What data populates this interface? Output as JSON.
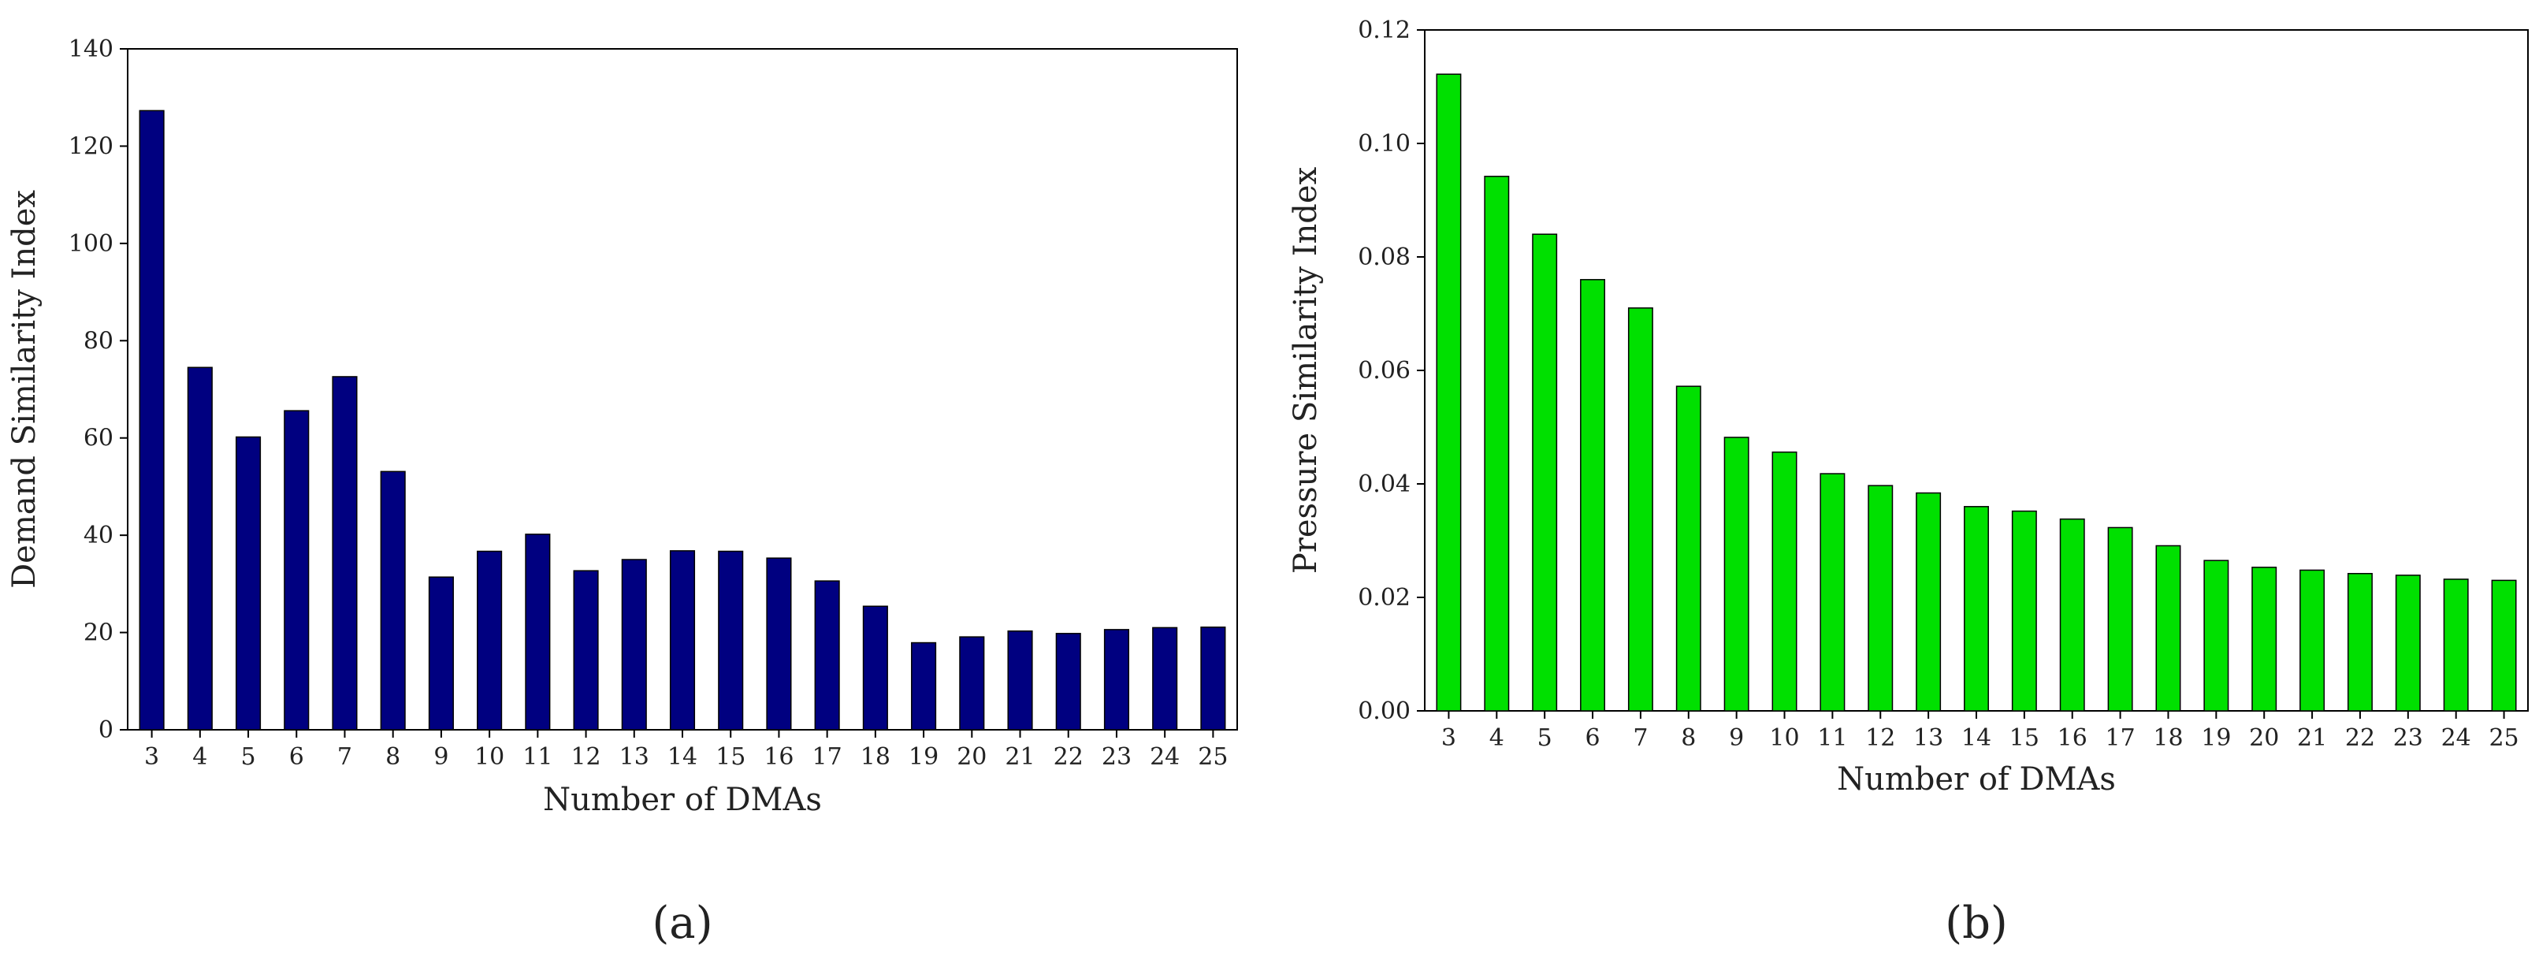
{
  "chart_data": [
    {
      "type": "bar",
      "panel_label": "(a)",
      "xlabel": "Number of DMAs",
      "ylabel": "Demand Similarity Index",
      "categories": [
        "3",
        "4",
        "5",
        "6",
        "7",
        "8",
        "9",
        "10",
        "11",
        "12",
        "13",
        "14",
        "15",
        "16",
        "17",
        "18",
        "19",
        "20",
        "21",
        "22",
        "23",
        "24",
        "25"
      ],
      "values": [
        127.3,
        74.5,
        60.2,
        65.6,
        72.6,
        53.1,
        31.4,
        36.7,
        40.2,
        32.7,
        35.0,
        36.8,
        36.7,
        35.3,
        30.6,
        25.4,
        17.9,
        19.1,
        20.3,
        19.8,
        20.6,
        21.0,
        21.1
      ],
      "ylim": [
        0,
        140
      ],
      "yticks": [
        0,
        20,
        40,
        60,
        80,
        100,
        120,
        140
      ],
      "ytick_labels": [
        "0",
        "20",
        "40",
        "60",
        "80",
        "100",
        "120",
        "140"
      ],
      "bar_color": "#000080",
      "grid": false
    },
    {
      "type": "bar",
      "panel_label": "(b)",
      "xlabel": "Number of DMAs",
      "ylabel": "Pressure Similarity Index",
      "categories": [
        "3",
        "4",
        "5",
        "6",
        "7",
        "8",
        "9",
        "10",
        "11",
        "12",
        "13",
        "14",
        "15",
        "16",
        "17",
        "18",
        "19",
        "20",
        "21",
        "22",
        "23",
        "24",
        "25"
      ],
      "values": [
        0.1122,
        0.0942,
        0.084,
        0.076,
        0.071,
        0.0572,
        0.0482,
        0.0456,
        0.0418,
        0.0397,
        0.0384,
        0.036,
        0.0352,
        0.0338,
        0.0323,
        0.0291,
        0.0265,
        0.0253,
        0.0248,
        0.0242,
        0.0239,
        0.0232,
        0.023
      ],
      "ylim": [
        0,
        0.12
      ],
      "yticks": [
        0,
        0.02,
        0.04,
        0.06,
        0.08,
        0.1,
        0.12
      ],
      "ytick_labels": [
        "0.00",
        "0.02",
        "0.04",
        "0.06",
        "0.08",
        "0.10",
        "0.12"
      ],
      "bar_color": "#00e000",
      "grid": false
    }
  ]
}
